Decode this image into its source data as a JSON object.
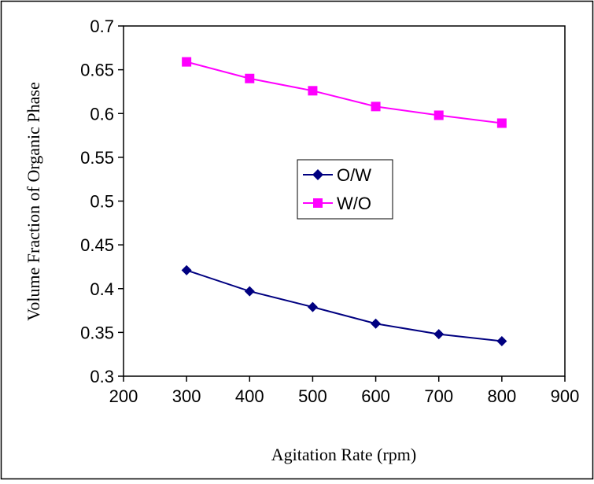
{
  "chart_data": {
    "type": "line",
    "xlabel": "Agitation Rate (rpm)",
    "ylabel": "Volume Fraction of Organic Phase",
    "xlim": [
      200,
      900
    ],
    "ylim": [
      0.3,
      0.7
    ],
    "xticks": [
      200,
      300,
      400,
      500,
      600,
      700,
      800,
      900
    ],
    "yticks": [
      0.3,
      0.35,
      0.4,
      0.45,
      0.5,
      0.55,
      0.6,
      0.65,
      0.7
    ],
    "xtick_labels": [
      "200",
      "300",
      "400",
      "500",
      "600",
      "700",
      "800",
      "900"
    ],
    "ytick_labels": [
      "0.3",
      "0.35",
      "0.4",
      "0.45",
      "0.5",
      "0.55",
      "0.6",
      "0.65",
      "0.7"
    ],
    "grid": false,
    "legend_position": "center",
    "x": [
      300,
      400,
      500,
      600,
      700,
      800
    ],
    "series": [
      {
        "name": "O/W",
        "values": [
          0.421,
          0.397,
          0.379,
          0.36,
          0.348,
          0.34
        ],
        "color": "#000080",
        "marker": "diamond"
      },
      {
        "name": "W/O",
        "values": [
          0.659,
          0.64,
          0.626,
          0.608,
          0.598,
          0.589
        ],
        "color": "#FF00FF",
        "marker": "square"
      }
    ]
  }
}
